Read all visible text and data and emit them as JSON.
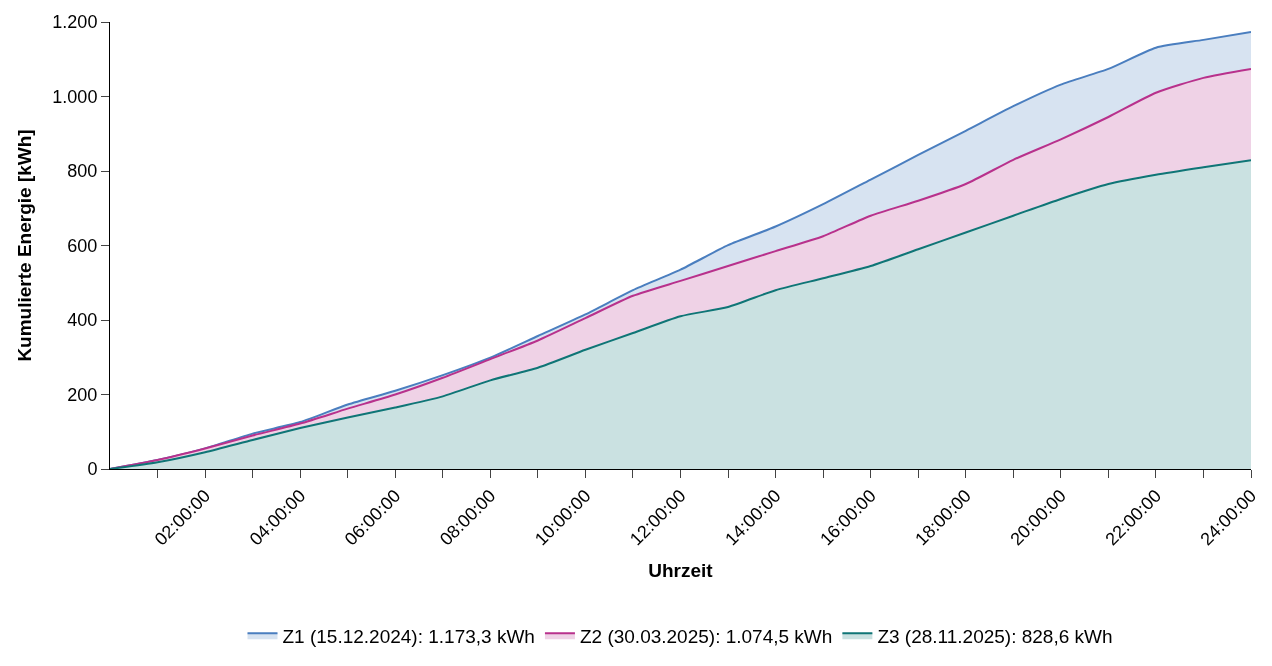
{
  "chart_data": {
    "type": "area",
    "xlabel": "Uhrzeit",
    "ylabel": "Kumulierte Energie [kWh]",
    "x": [
      0,
      1,
      2,
      3,
      4,
      5,
      6,
      7,
      8,
      9,
      10,
      11,
      12,
      13,
      14,
      15,
      16,
      17,
      18,
      19,
      20,
      21,
      22,
      23,
      24
    ],
    "series": [
      {
        "name": "Z1 (15.12.2024): 1.173,3 kWh",
        "color": "#4a7ebf",
        "values": [
          0,
          24,
          55,
          95,
          126,
          173,
          210,
          252,
          299,
          357,
          415,
          480,
          535,
          601,
          651,
          711,
          777,
          843,
          908,
          974,
          1032,
          1074,
          1131,
          1152,
          1173
        ]
      },
      {
        "name": "Z2 (30.03.2025): 1.074,5 kWh",
        "color": "#b8318c",
        "values": [
          0,
          24,
          55,
          90,
          122,
          162,
          200,
          245,
          295,
          345,
          405,
          465,
          505,
          545,
          585,
          625,
          680,
          720,
          765,
          830,
          885,
          945,
          1010,
          1050,
          1074
        ]
      },
      {
        "name": "Z3 (28.11.2025): 828,6 kWh",
        "color": "#0f7576",
        "values": [
          0,
          18,
          45,
          78,
          110,
          138,
          165,
          195,
          238,
          272,
          320,
          365,
          410,
          435,
          480,
          512,
          545,
          590,
          635,
          680,
          725,
          765,
          790,
          810,
          829
        ]
      }
    ],
    "xlim": [
      0,
      24
    ],
    "xticks": [
      {
        "value": 1,
        "label": null
      },
      {
        "value": 2,
        "label": "02:00:00"
      },
      {
        "value": 3,
        "label": null
      },
      {
        "value": 4,
        "label": "04:00:00"
      },
      {
        "value": 5,
        "label": null
      },
      {
        "value": 6,
        "label": "06:00:00"
      },
      {
        "value": 7,
        "label": null
      },
      {
        "value": 8,
        "label": "08:00:00"
      },
      {
        "value": 9,
        "label": null
      },
      {
        "value": 10,
        "label": "10:00:00"
      },
      {
        "value": 11,
        "label": null
      },
      {
        "value": 12,
        "label": "12:00:00"
      },
      {
        "value": 13,
        "label": null
      },
      {
        "value": 14,
        "label": "14:00:00"
      },
      {
        "value": 15,
        "label": null
      },
      {
        "value": 16,
        "label": "16:00:00"
      },
      {
        "value": 17,
        "label": null
      },
      {
        "value": 18,
        "label": "18:00:00"
      },
      {
        "value": 19,
        "label": null
      },
      {
        "value": 20,
        "label": "20:00:00"
      },
      {
        "value": 21,
        "label": null
      },
      {
        "value": 22,
        "label": "22:00:00"
      },
      {
        "value": 23,
        "label": null
      },
      {
        "value": 24,
        "label": "24:00:00"
      }
    ],
    "ylim": [
      0,
      1200
    ],
    "yticks": [
      0,
      200,
      400,
      600,
      800,
      {
        "value": 1000,
        "label": "1.000"
      },
      {
        "value": 1200,
        "label": "1.200"
      }
    ],
    "legend": "bottom",
    "marker": "none",
    "line_style": "solid"
  }
}
